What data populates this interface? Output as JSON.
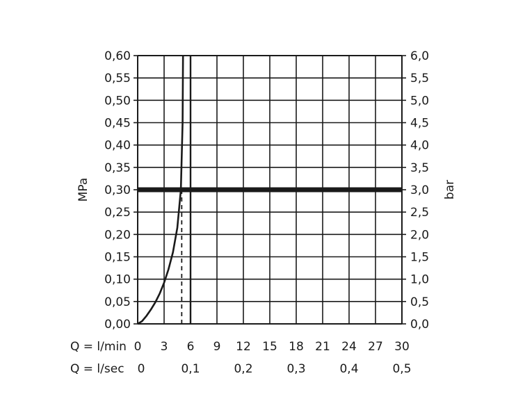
{
  "chart_data": {
    "type": "line",
    "title": "",
    "grid": true,
    "x_axis": {
      "range": [
        0,
        30
      ],
      "ticks": [
        "0",
        "3",
        "6",
        "9",
        "12",
        "15",
        "18",
        "21",
        "24",
        "27",
        "30"
      ],
      "label": "Q = l/min"
    },
    "x_axis_secondary": {
      "ticks": [
        "0",
        "0,1",
        "0,2",
        "0,3",
        "0,4",
        "0,5"
      ],
      "label": "Q = l/sec"
    },
    "y_axis_left": {
      "label": "MPa",
      "range": [
        0,
        0.6
      ],
      "ticks": [
        "0,00",
        "0,05",
        "0,10",
        "0,15",
        "0,20",
        "0,25",
        "0,30",
        "0,35",
        "0,40",
        "0,45",
        "0,50",
        "0,55",
        "0,60"
      ]
    },
    "y_axis_right": {
      "label": "bar",
      "range": [
        0,
        6
      ],
      "ticks": [
        "0,0",
        "0,5",
        "1,0",
        "1,5",
        "2,0",
        "2,5",
        "3,0",
        "3,5",
        "4,0",
        "4,5",
        "5,0",
        "5,5",
        "6,0"
      ]
    },
    "series": [
      {
        "values": [
          [
            0,
            0
          ],
          [
            0.5,
            0.006
          ],
          [
            1.0,
            0.018
          ],
          [
            1.5,
            0.032
          ],
          [
            2.0,
            0.048
          ],
          [
            2.5,
            0.068
          ],
          [
            3.0,
            0.092
          ],
          [
            3.5,
            0.122
          ],
          [
            4.0,
            0.16
          ],
          [
            4.5,
            0.215
          ],
          [
            4.9,
            0.3
          ],
          [
            5.1,
            0.45
          ],
          [
            5.15,
            0.6
          ]
        ]
      }
    ],
    "reference_lines": [
      {
        "axis": "y",
        "value": 0.3,
        "style": "thick-solid"
      },
      {
        "axis": "x",
        "value": 5,
        "style": "dashed",
        "from": 0,
        "to": 0.3
      },
      {
        "axis": "x",
        "value": 6,
        "style": "solid"
      }
    ]
  }
}
